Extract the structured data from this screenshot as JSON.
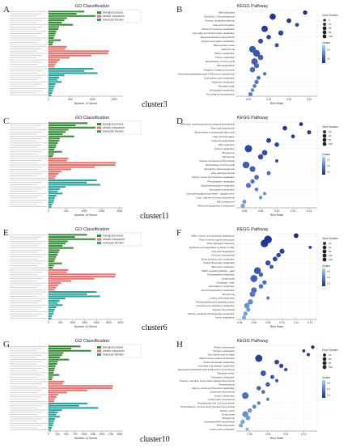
{
  "colors": {
    "bp": "#3a8c3a",
    "cc": "#e8736f",
    "mf": "#2aa39d",
    "kegg_dark": "#1a2c8c",
    "kegg_light": "#9fd6f2"
  },
  "go_common": {
    "title": "GO Classification",
    "xlabel": "Number of Genes",
    "legend": [
      "biological process",
      "cellular component",
      "molecular function"
    ]
  },
  "kegg_common": {
    "title": "KEGG Pathway",
    "xlabel": "Rich Ratio",
    "legend_count_title": "Gene Number",
    "legend_q_title": "Qvalue"
  },
  "rows": [
    {
      "cluster": "cluster3",
      "go_letter": "A",
      "kegg_letter": "B",
      "go": {
        "xticks": [
          "0",
          "500",
          "1000",
          "1500"
        ],
        "xmax": 1700,
        "bp": [
          820,
          640,
          1180,
          420,
          360,
          300,
          560,
          240,
          220,
          180,
          160,
          140,
          120,
          280,
          110,
          90
        ],
        "cc": [
          420,
          380,
          1380,
          1360,
          980,
          480,
          260,
          200,
          160,
          140
        ],
        "mf": [
          1020,
          820,
          1120,
          360,
          240,
          200,
          300,
          160,
          140,
          120,
          100,
          80,
          60
        ]
      },
      "kegg": {
        "xticks": [
          "0.05",
          "0.10",
          "0.15",
          "0.20"
        ],
        "xlim": [
          0.02,
          0.22
        ],
        "count_ticks": [
          "5",
          "10",
          "25",
          "50",
          "100"
        ],
        "q_ticks": [
          "0.4",
          "0.2"
        ],
        "pathways": [
          {
            "name": "DNA replication",
            "ratio": 0.19,
            "count": 30,
            "q": 0.0
          },
          {
            "name": "Glycolysis / Gluconeogenesis",
            "ratio": 0.11,
            "count": 80,
            "q": 0.05
          },
          {
            "name": "Pentose phosphate pathway",
            "ratio": 0.15,
            "count": 40,
            "q": 0.05
          },
          {
            "name": "Fatty acid elongation",
            "ratio": 0.17,
            "count": 20,
            "q": 0.1
          },
          {
            "name": "Starch and sucrose metabolism",
            "ratio": 0.09,
            "count": 90,
            "q": 0.1
          },
          {
            "name": "Glyoxylate and dicarboxylate metabolism",
            "ratio": 0.13,
            "count": 50,
            "q": 0.15
          },
          {
            "name": "Terpenoid backbone biosynthesis",
            "ratio": 0.1,
            "count": 35,
            "q": 0.15
          },
          {
            "name": "Arginine and proline metabolism",
            "ratio": 0.08,
            "count": 45,
            "q": 0.2
          },
          {
            "name": "Base excision repair",
            "ratio": 0.12,
            "count": 25,
            "q": 0.2
          },
          {
            "name": "Spliceosome",
            "ratio": 0.06,
            "count": 100,
            "q": 0.25
          },
          {
            "name": "Carbon metabolism",
            "ratio": 0.07,
            "count": 110,
            "q": 0.25
          },
          {
            "name": "Purine metabolism",
            "ratio": 0.08,
            "count": 60,
            "q": 0.3
          },
          {
            "name": "Biosynthesis of amino acids",
            "ratio": 0.065,
            "count": 95,
            "q": 0.3
          },
          {
            "name": "RNA degradation",
            "ratio": 0.07,
            "count": 50,
            "q": 0.35
          },
          {
            "name": "Ubiquitin mediated proteolysis",
            "ratio": 0.06,
            "count": 55,
            "q": 0.35
          },
          {
            "name": "Glycosylphosphatidylinositol (GPI)-anchor biosynthesis",
            "ratio": 0.09,
            "count": 15,
            "q": 0.4
          },
          {
            "name": "Cyanoamino acid metabolism",
            "ratio": 0.075,
            "count": 25,
            "q": 0.4
          },
          {
            "name": "Galactose metabolism",
            "ratio": 0.07,
            "count": 30,
            "q": 0.45
          },
          {
            "name": "Mismatch repair",
            "ratio": 0.065,
            "count": 20,
            "q": 0.45
          },
          {
            "name": "Sphingolipid metabolism",
            "ratio": 0.06,
            "count": 18,
            "q": 0.5
          },
          {
            "name": "Homologous recombination",
            "ratio": 0.055,
            "count": 28,
            "q": 0.5
          }
        ]
      }
    },
    {
      "cluster": "cluster11",
      "go_letter": "C",
      "kegg_letter": "D",
      "go": {
        "xticks": [
          "0",
          "500",
          "1000",
          "1500",
          "2000"
        ],
        "xmax": 2100,
        "bp": [
          1100,
          760,
          1500,
          560,
          480,
          400,
          720,
          320,
          300,
          260,
          220,
          200,
          160,
          380,
          150,
          120
        ],
        "cc": [
          560,
          520,
          1900,
          1880,
          1300,
          640,
          360,
          280,
          220,
          180
        ],
        "mf": [
          1360,
          1080,
          1460,
          480,
          320,
          260,
          400,
          220,
          180,
          160,
          140,
          100,
          80
        ]
      },
      "kegg": {
        "xticks": [
          "0.06",
          "0.08",
          "0.10",
          "0.12",
          "0.14"
        ],
        "xlim": [
          0.05,
          0.15
        ],
        "count_ticks": [
          "10",
          "20",
          "50",
          "100"
        ],
        "q_ticks": [
          "0.6",
          "0.4",
          "0.2"
        ],
        "pathways": [
          {
            "name": "Stilbenoid, diarylheptanoid and gingerol biosynthesis",
            "ratio": 0.13,
            "count": 20,
            "q": 0.0
          },
          {
            "name": "Flavonoid biosynthesis",
            "ratio": 0.11,
            "count": 35,
            "q": 0.05
          },
          {
            "name": "Biosynthesis of unsaturated fatty acids",
            "ratio": 0.14,
            "count": 25,
            "q": 0.05
          },
          {
            "name": "Fatty acid elongation",
            "ratio": 0.12,
            "count": 20,
            "q": 0.1
          },
          {
            "name": "Fatty acid degradation",
            "ratio": 0.09,
            "count": 40,
            "q": 0.1
          },
          {
            "name": "DNA replication",
            "ratio": 0.1,
            "count": 35,
            "q": 0.15
          },
          {
            "name": "Carbon metabolism",
            "ratio": 0.065,
            "count": 130,
            "q": 0.15
          },
          {
            "name": "Phagosome",
            "ratio": 0.085,
            "count": 60,
            "q": 0.2
          },
          {
            "name": "Peroxisome",
            "ratio": 0.08,
            "count": 55,
            "q": 0.2
          },
          {
            "name": "Flavone and flavonol biosynthesis",
            "ratio": 0.1,
            "count": 15,
            "q": 0.25
          },
          {
            "name": "Biosynthesis of amino acids",
            "ratio": 0.062,
            "count": 110,
            "q": 0.3
          },
          {
            "name": "Glycolysis / Gluconeogenesis",
            "ratio": 0.07,
            "count": 70,
            "q": 0.3
          },
          {
            "name": "Fatty acid biosynthesis",
            "ratio": 0.09,
            "count": 25,
            "q": 0.35
          },
          {
            "name": "Glycine, serine and threonine metabolism",
            "ratio": 0.075,
            "count": 40,
            "q": 0.4
          },
          {
            "name": "Phenylalanine metabolism",
            "ratio": 0.07,
            "count": 30,
            "q": 0.4
          },
          {
            "name": "Glycerophospholipid metabolism",
            "ratio": 0.065,
            "count": 50,
            "q": 0.45
          },
          {
            "name": "Sphingolipid metabolism",
            "ratio": 0.075,
            "count": 20,
            "q": 0.5
          },
          {
            "name": "Glycosphingolipid biosynthesis - ganglio series",
            "ratio": 0.085,
            "count": 10,
            "q": 0.55
          },
          {
            "name": "Cutin, suberine and wax biosynthesis",
            "ratio": 0.08,
            "count": 15,
            "q": 0.6
          },
          {
            "name": "ABC transporters",
            "ratio": 0.06,
            "count": 25,
            "q": 0.65
          },
          {
            "name": "Ribosome biogenesis in eukaryotes",
            "ratio": 0.058,
            "count": 30,
            "q": 0.7
          }
        ]
      }
    },
    {
      "cluster": "cluster6",
      "go_letter": "E",
      "kegg_letter": "F",
      "go": {
        "xticks": [
          "0",
          "500",
          "1000",
          "1500",
          "2000",
          "2500",
          "3000"
        ],
        "xmax": 3100,
        "bp": [
          1600,
          1100,
          2200,
          800,
          700,
          580,
          1040,
          460,
          420,
          380,
          320,
          280,
          240,
          560,
          220,
          180
        ],
        "cc": [
          820,
          760,
          2800,
          2760,
          1900,
          940,
          520,
          400,
          320,
          260
        ],
        "mf": [
          2000,
          1600,
          2140,
          700,
          460,
          380,
          580,
          320,
          260,
          220,
          200,
          140,
          120
        ]
      },
      "kegg": {
        "xticks": [
          "0.04",
          "0.06",
          "0.08",
          "0.10",
          "0.12",
          "0.14"
        ],
        "xlim": [
          0.035,
          0.15
        ],
        "count_ticks": [
          "10",
          "20",
          "50",
          "100",
          "150"
        ],
        "q_ticks": [
          "0.6",
          "0.4",
          "0.2"
        ],
        "pathways": [
          {
            "name": "Valine, leucine and isoleucine degradation",
            "ratio": 0.12,
            "count": 40,
            "q": 0.0
          },
          {
            "name": "Plant hormone signal transduction",
            "ratio": 0.08,
            "count": 150,
            "q": 0.05
          },
          {
            "name": "Plant-pathogen interaction",
            "ratio": 0.075,
            "count": 140,
            "q": 0.05
          },
          {
            "name": "Synthesis and degradation of ketone bodies",
            "ratio": 0.14,
            "count": 10,
            "q": 0.1
          },
          {
            "name": "Fatty acid degradation",
            "ratio": 0.1,
            "count": 45,
            "q": 0.1
          },
          {
            "name": "N-Glycan biosynthesis",
            "ratio": 0.095,
            "count": 35,
            "q": 0.15
          },
          {
            "name": "Alpha-Linolenic acid metabolism",
            "ratio": 0.09,
            "count": 40,
            "q": 0.15
          },
          {
            "name": "Inositol phosphate metabolism",
            "ratio": 0.08,
            "count": 50,
            "q": 0.2
          },
          {
            "name": "Ether lipid metabolism",
            "ratio": 0.085,
            "count": 25,
            "q": 0.25
          },
          {
            "name": "MAPK signaling pathway - plant",
            "ratio": 0.065,
            "count": 110,
            "q": 0.25
          },
          {
            "name": "Phenylalanine metabolism",
            "ratio": 0.07,
            "count": 30,
            "q": 0.3
          },
          {
            "name": "Endocytosis",
            "ratio": 0.06,
            "count": 120,
            "q": 0.3
          },
          {
            "name": "Autophagy - other",
            "ratio": 0.075,
            "count": 30,
            "q": 0.35
          },
          {
            "name": "beta-Alanine metabolism",
            "ratio": 0.07,
            "count": 35,
            "q": 0.4
          },
          {
            "name": "Glycerophospholipid metabolism",
            "ratio": 0.06,
            "count": 70,
            "q": 0.4
          },
          {
            "name": "Peroxisome",
            "ratio": 0.058,
            "count": 65,
            "q": 0.45
          },
          {
            "name": "Linoleic acid metabolism",
            "ratio": 0.08,
            "count": 15,
            "q": 0.5
          },
          {
            "name": "Phosphatidylinositol signaling system",
            "ratio": 0.055,
            "count": 55,
            "q": 0.55
          },
          {
            "name": "Cysteine and methionine metabolism",
            "ratio": 0.05,
            "count": 60,
            "q": 0.6
          },
          {
            "name": "Arginine biosynthesis",
            "ratio": 0.052,
            "count": 25,
            "q": 0.65
          },
          {
            "name": "Alanine, aspartate and glutamate metabolism",
            "ratio": 0.048,
            "count": 30,
            "q": 0.7
          },
          {
            "name": "Lysine degradation",
            "ratio": 0.046,
            "count": 28,
            "q": 0.75
          }
        ]
      }
    },
    {
      "cluster": "cluster10",
      "go_letter": "G",
      "kegg_letter": "H",
      "go": {
        "xticks": [
          "0",
          "250",
          "500",
          "750",
          "1000",
          "1250",
          "1500",
          "1750",
          "2000"
        ],
        "xmax": 2100,
        "bp": [
          900,
          640,
          1200,
          420,
          380,
          320,
          580,
          260,
          240,
          200,
          180,
          160,
          140,
          300,
          120,
          100
        ],
        "cc": [
          440,
          400,
          1820,
          1800,
          1100,
          520,
          280,
          220,
          180,
          160
        ],
        "mf": [
          1100,
          860,
          1400,
          380,
          260,
          220,
          320,
          180,
          160,
          140,
          120,
          90,
          70
        ]
      },
      "kegg": {
        "xticks": [
          "0.06",
          "0.08",
          "0.10",
          "0.12"
        ],
        "xlim": [
          0.045,
          0.135
        ],
        "count_ticks": [
          "10",
          "20",
          "50",
          "100"
        ],
        "q_ticks": [
          "0.6",
          "0.4",
          "0.2"
        ],
        "pathways": [
          {
            "name": "Protein biosynthesis",
            "ratio": 0.13,
            "count": 15,
            "q": 0.0
          },
          {
            "name": "Nitrogen metabolism",
            "ratio": 0.12,
            "count": 10,
            "q": 0.05
          },
          {
            "name": "One carbon pool by folate",
            "ratio": 0.125,
            "count": 12,
            "q": 0.1
          },
          {
            "name": "Plant hormone signal transduction",
            "ratio": 0.07,
            "count": 120,
            "q": 0.1
          },
          {
            "name": "Inositol phosphate metabolism",
            "ratio": 0.09,
            "count": 40,
            "q": 0.15
          },
          {
            "name": "Ascorbate and aldarate metabolism",
            "ratio": 0.095,
            "count": 30,
            "q": 0.15
          },
          {
            "name": "Glycosylphosphatidylinositol (GPI)-anchor biosynthesis",
            "ratio": 0.1,
            "count": 15,
            "q": 0.2
          },
          {
            "name": "Signaling system",
            "ratio": 0.075,
            "count": 60,
            "q": 0.25
          },
          {
            "name": "Tryptophan metabolism",
            "ratio": 0.085,
            "count": 25,
            "q": 0.25
          },
          {
            "name": "Tropane, piperidine and pyridine alkaloid biosynthesis",
            "ratio": 0.09,
            "count": 15,
            "q": 0.3
          },
          {
            "name": "Photosynthesis",
            "ratio": 0.08,
            "count": 35,
            "q": 0.3
          },
          {
            "name": "Glycine, serine and threonine metabolism",
            "ratio": 0.07,
            "count": 35,
            "q": 0.35
          },
          {
            "name": "Carotenoid biosynthesis",
            "ratio": 0.075,
            "count": 20,
            "q": 0.4
          },
          {
            "name": "Carbon metabolism",
            "ratio": 0.055,
            "count": 100,
            "q": 0.4
          },
          {
            "name": "Anthocyanin biosynthesis",
            "ratio": 0.08,
            "count": 10,
            "q": 0.45
          },
          {
            "name": "Pantothenate and CoA biosynthesis",
            "ratio": 0.07,
            "count": 15,
            "q": 0.5
          },
          {
            "name": "Phenylalanine, tyrosine and tryptophan biosynthesis",
            "ratio": 0.065,
            "count": 25,
            "q": 0.55
          },
          {
            "name": "Protein export",
            "ratio": 0.06,
            "count": 30,
            "q": 0.6
          },
          {
            "name": "Endocytosis",
            "ratio": 0.055,
            "count": 80,
            "q": 0.6
          },
          {
            "name": "Phagosome",
            "ratio": 0.058,
            "count": 40,
            "q": 0.65
          },
          {
            "name": "Aminoacyl-tRNA biosynthesis",
            "ratio": 0.052,
            "count": 30,
            "q": 0.7
          },
          {
            "name": "RNA polymerase",
            "ratio": 0.05,
            "count": 25,
            "q": 0.75
          },
          {
            "name": "Linoleic acid metabolism",
            "ratio": 0.057,
            "count": 10,
            "q": 0.8
          }
        ]
      }
    }
  ]
}
